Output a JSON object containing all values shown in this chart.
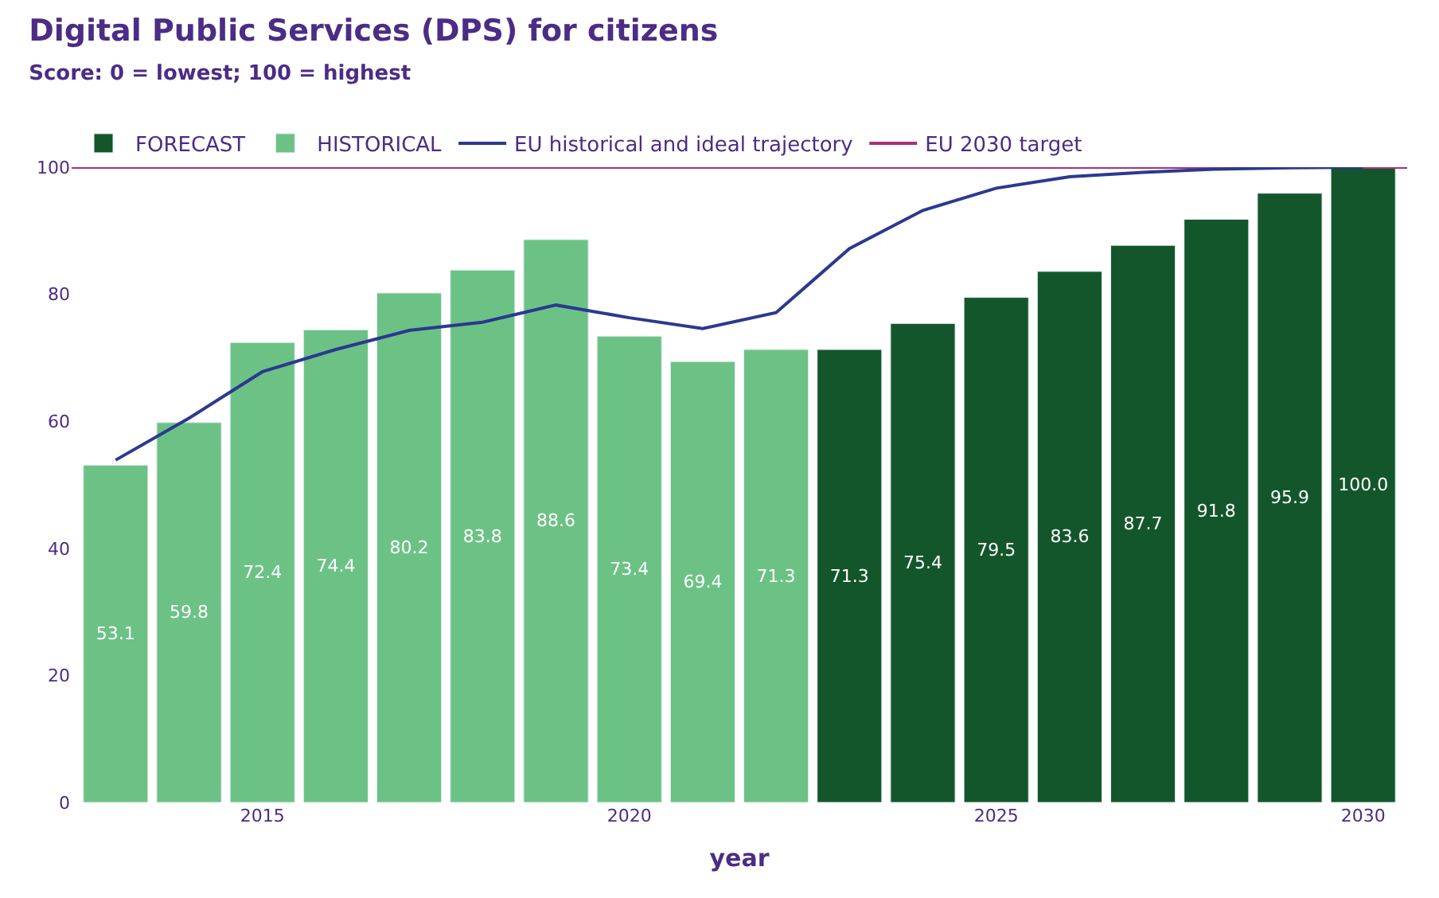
{
  "chart_data": {
    "type": "bar",
    "title": "Digital Public Services (DPS) for citizens",
    "subtitle": "Score: 0 = lowest; 100 = highest",
    "xlabel": "year",
    "x": [
      2013,
      2014,
      2015,
      2016,
      2017,
      2018,
      2019,
      2020,
      2021,
      2022,
      2023,
      2024,
      2025,
      2026,
      2027,
      2028,
      2029,
      2030
    ],
    "series": [
      {
        "name": "FORECAST",
        "color": "#14562b",
        "values": [
          null,
          null,
          null,
          null,
          null,
          null,
          null,
          null,
          null,
          null,
          71.3,
          75.4,
          79.5,
          83.6,
          87.7,
          91.8,
          95.9,
          100.0
        ],
        "value_labels": [
          null,
          null,
          null,
          null,
          null,
          null,
          null,
          null,
          null,
          null,
          "71.3",
          "75.4",
          "79.5",
          "83.6",
          "87.7",
          "91.8",
          "95.9",
          "100.0"
        ]
      },
      {
        "name": "HISTORICAL",
        "color": "#6cc285",
        "values": [
          53.1,
          59.8,
          72.4,
          74.4,
          80.2,
          83.8,
          88.6,
          73.4,
          69.4,
          71.3,
          null,
          null,
          null,
          null,
          null,
          null,
          null,
          null
        ],
        "value_labels": [
          "53.1",
          "59.8",
          "72.4",
          "74.4",
          "80.2",
          "83.8",
          "88.6",
          "73.4",
          "69.4",
          "71.3",
          null,
          null,
          null,
          null,
          null,
          null,
          null,
          null
        ]
      },
      {
        "name": "EU historical and ideal trajectory",
        "type": "line",
        "color": "#2b3990",
        "values": [
          53.9,
          60.5,
          67.8,
          71.3,
          74.3,
          75.6,
          78.3,
          76.3,
          74.6,
          77.1,
          87.2,
          93.2,
          96.7,
          98.5,
          99.2,
          99.7,
          99.9,
          100.0
        ]
      }
    ],
    "ref_lines": [
      {
        "axis": "y",
        "value": 100,
        "label": "EU 2030 target",
        "color": "#a8317a"
      }
    ],
    "xlim": [
      2012.4,
      2030.6
    ],
    "xticks": [
      2015,
      2020,
      2025,
      2030
    ],
    "ylim": [
      0,
      100
    ],
    "yticks": [
      0,
      20,
      40,
      60,
      80,
      100
    ],
    "grid": false,
    "legend": "top left",
    "marker": "none",
    "line_style": "solid"
  }
}
